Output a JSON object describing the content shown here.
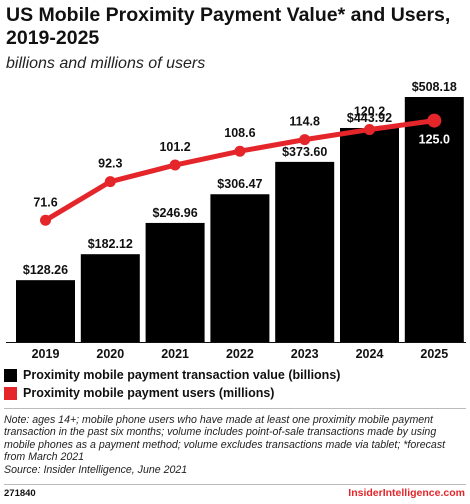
{
  "chart_data": {
    "type": "bar+line",
    "title": "US Mobile Proximity Payment Value* and Users, 2019-2025",
    "subtitle": "billions and millions of users",
    "categories": [
      "2019",
      "2020",
      "2021",
      "2022",
      "2023",
      "2024",
      "2025"
    ],
    "series": [
      {
        "name": "Proximity mobile payment transaction value (billions)",
        "type": "bar",
        "color": "#000000",
        "values": [
          128.26,
          182.12,
          246.96,
          306.47,
          373.6,
          443.92,
          508.18
        ],
        "labels": [
          "$128.26",
          "$182.12",
          "$246.96",
          "$306.47",
          "$373.60",
          "$443.92",
          "$508.18"
        ]
      },
      {
        "name": "Proximity mobile payment users (millions)",
        "type": "line",
        "color": "#e4262b",
        "values": [
          71.6,
          92.3,
          101.2,
          108.6,
          114.8,
          120.2,
          125.0
        ],
        "labels": [
          "71.6",
          "92.3",
          "101.2",
          "108.6",
          "114.8",
          "120.2",
          "125.0"
        ]
      }
    ],
    "bar_ylim": [
      0,
      508.18
    ],
    "line_ylim": [
      50,
      130
    ],
    "grid": false,
    "legend_position": "bottom-left"
  },
  "notes": {
    "text": "Note: ages 14+; mobile phone users who have made at least one proximity mobile payment transaction in the past six months; volume includes point-of-sale transactions made by using mobile phones as a payment method; volume excludes transactions made via tablet; *forecast from March 2021",
    "source": "Source: Insider Intelligence, June 2021"
  },
  "footer": {
    "id": "271840",
    "brand": "InsiderIntelligence.com"
  }
}
